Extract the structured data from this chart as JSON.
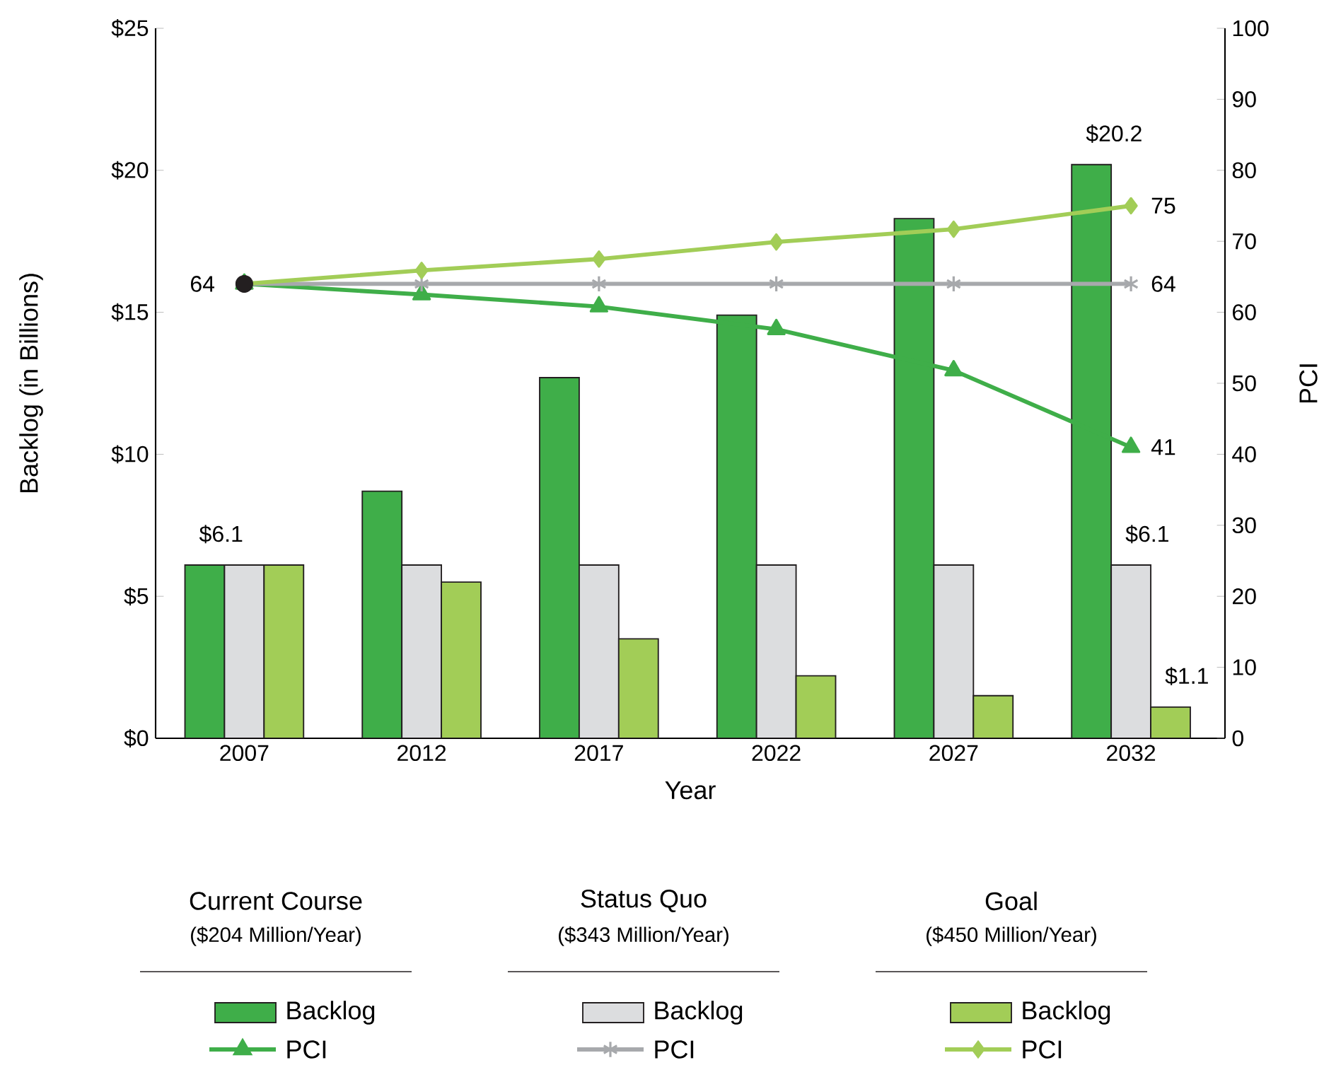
{
  "chart_data": {
    "type": "bar",
    "xlabel": "Year",
    "ylabel": "Backlog (in Billions)",
    "y2label": "PCI",
    "categories": [
      "2007",
      "2012",
      "2017",
      "2022",
      "2027",
      "2032"
    ],
    "ylim": [
      0,
      25
    ],
    "yticks": [
      {
        "value": 0,
        "label": "$0"
      },
      {
        "value": 5,
        "label": "$5"
      },
      {
        "value": 10,
        "label": "$10"
      },
      {
        "value": 15,
        "label": "$15"
      },
      {
        "value": 20,
        "label": "$20"
      },
      {
        "value": 25,
        "label": "$25"
      }
    ],
    "y2lim": [
      0,
      100
    ],
    "y2ticks": [
      0,
      10,
      20,
      30,
      40,
      50,
      60,
      70,
      80,
      90,
      100
    ],
    "legend": "bottom",
    "grid": false,
    "annotations": [
      "Current Course",
      "($204 Million/Year)",
      "Status Quo",
      "($343 Million/Year)",
      "Goal",
      "($450 Million/Year)"
    ],
    "series": [
      {
        "name": "Backlog",
        "color": "#3fae49",
        "values": [
          6.1,
          8.7,
          12.7,
          14.9,
          18.3,
          20.2
        ],
        "value_labels": [
          "$6.1",
          null,
          null,
          null,
          null,
          "$20.2"
        ]
      },
      {
        "name": "Backlog",
        "color": "#dcdddf",
        "values": [
          6.1,
          6.1,
          6.1,
          6.1,
          6.1,
          6.1
        ],
        "value_labels": [
          null,
          null,
          null,
          null,
          null,
          "$6.1"
        ]
      },
      {
        "name": "Backlog",
        "color": "#a2cd57",
        "values": [
          6.1,
          5.5,
          3.5,
          2.2,
          1.5,
          1.1
        ],
        "value_labels": [
          null,
          null,
          null,
          null,
          null,
          "$1.1"
        ]
      },
      {
        "name": "PCI",
        "type": "line",
        "axis": "y2",
        "color": "#3fae49",
        "marker": "triangle",
        "values": [
          64,
          62.5,
          60.8,
          57.6,
          51.8,
          41
        ],
        "value_labels": [
          null,
          null,
          null,
          null,
          null,
          "41"
        ]
      },
      {
        "name": "PCI",
        "type": "line",
        "axis": "y2",
        "color": "#a7a9ac",
        "marker": "cross",
        "values": [
          64,
          64,
          64,
          64,
          64,
          64
        ],
        "value_labels": [
          null,
          null,
          null,
          null,
          null,
          "64"
        ]
      },
      {
        "name": "PCI",
        "type": "line",
        "axis": "y2",
        "color": "#a2cd57",
        "marker": "diamond",
        "values": [
          64,
          65.9,
          67.5,
          69.9,
          71.7,
          75
        ],
        "value_labels": [
          null,
          null,
          null,
          null,
          null,
          "75"
        ]
      },
      {
        "type": "scatter",
        "axis": "y2",
        "color": "#231f20",
        "marker": "circle",
        "values": [
          64,
          null,
          null,
          null,
          null,
          null
        ],
        "value_labels": [
          "64",
          null,
          null,
          null,
          null,
          null
        ]
      }
    ]
  }
}
